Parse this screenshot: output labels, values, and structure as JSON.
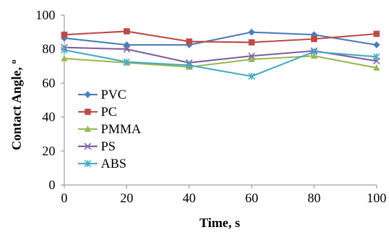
{
  "chart_data": {
    "type": "line",
    "title": "",
    "xlabel": "Time, s",
    "ylabel": "Contact Angle, º",
    "x": [
      0,
      20,
      40,
      60,
      80,
      100
    ],
    "xlim": [
      0,
      100
    ],
    "ylim": [
      0,
      100
    ],
    "xticks": [
      0,
      20,
      40,
      60,
      80,
      100
    ],
    "yticks": [
      0,
      20,
      40,
      60,
      80,
      100
    ],
    "grid": false,
    "legend_position": "center-left",
    "series": [
      {
        "name": "PVC",
        "color": "#4a7ebb",
        "marker": "diamond",
        "values": [
          86.5,
          82.5,
          82.5,
          90,
          88.5,
          82.5
        ]
      },
      {
        "name": "PC",
        "color": "#be4b48",
        "marker": "square",
        "values": [
          88.5,
          90.5,
          84.5,
          84,
          86,
          89
        ]
      },
      {
        "name": "PMMA",
        "color": "#98b954",
        "marker": "triangle",
        "values": [
          74.5,
          72,
          69.5,
          74,
          76,
          69
        ]
      },
      {
        "name": "PS",
        "color": "#7d60a0",
        "marker": "x",
        "values": [
          81,
          80,
          72,
          76,
          79,
          73
        ]
      },
      {
        "name": "ABS",
        "color": "#46aac5",
        "marker": "star",
        "values": [
          79.5,
          72.5,
          70.5,
          64,
          78.5,
          75.5
        ]
      }
    ]
  }
}
